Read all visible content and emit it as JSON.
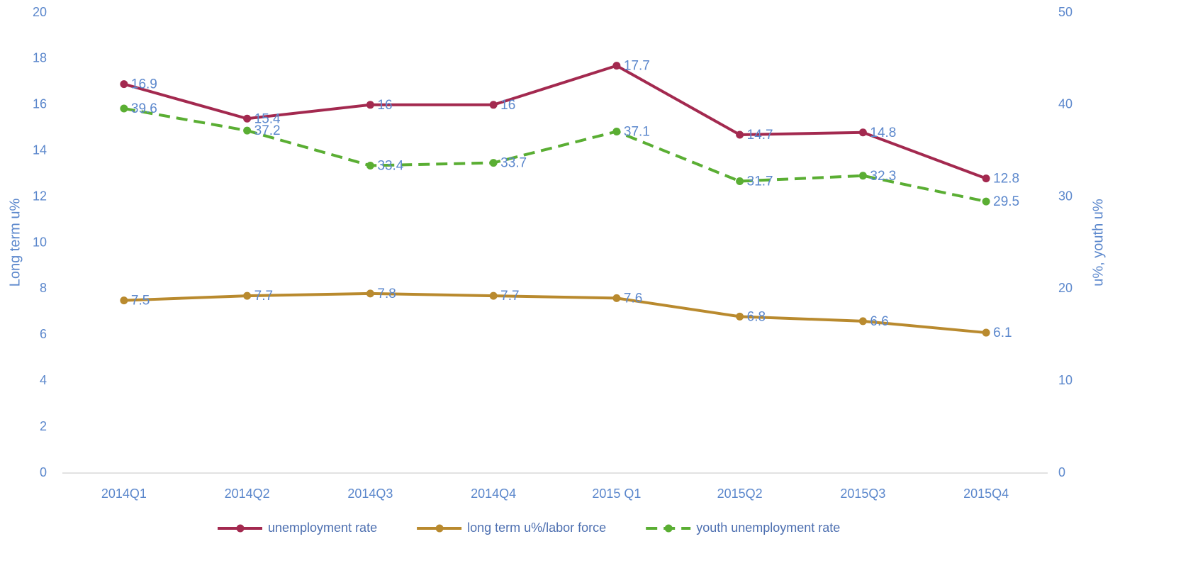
{
  "chart_data": {
    "type": "line",
    "categories": [
      "2014Q1",
      "2014Q2",
      "2014Q3",
      "2014Q4",
      "2015 Q1",
      "2015Q2",
      "2015Q3",
      "2015Q4"
    ],
    "series": [
      {
        "name": "unemployment rate",
        "color": "#a3294f",
        "values": [
          16.9,
          15.4,
          16,
          16,
          17.7,
          14.7,
          14.8,
          12.8
        ]
      },
      {
        "name": "long term u%/labor force",
        "color": "#b98a2e",
        "values": [
          7.5,
          7.7,
          7.8,
          7.7,
          7.6,
          6.8,
          6.6,
          6.1
        ]
      },
      {
        "name": "youth unemployment rate",
        "color": "#5aae33",
        "dashed": true,
        "axis": "y2",
        "values": [
          39.6,
          37.2,
          33.4,
          33.7,
          37.1,
          31.7,
          32.3,
          29.5
        ]
      }
    ],
    "ylabel": "Long term u%",
    "y2label": "u%, youth u%",
    "ylim": [
      0,
      20
    ],
    "yticks": [
      0,
      2,
      4,
      6,
      8,
      10,
      12,
      14,
      16,
      18,
      20
    ],
    "y2lim": [
      0,
      50
    ],
    "y2ticks": [
      0,
      10,
      20,
      30,
      40,
      50
    ],
    "grid": false,
    "legend": "bottom"
  }
}
